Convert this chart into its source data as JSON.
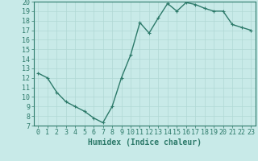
{
  "title": "",
  "xlabel": "Humidex (Indice chaleur)",
  "x": [
    0,
    1,
    2,
    3,
    4,
    5,
    6,
    7,
    8,
    9,
    10,
    11,
    12,
    13,
    14,
    15,
    16,
    17,
    18,
    19,
    20,
    21,
    22,
    23
  ],
  "y": [
    12.5,
    12.0,
    10.5,
    9.5,
    9.0,
    8.5,
    7.8,
    7.3,
    9.0,
    12.0,
    14.4,
    17.8,
    16.7,
    18.3,
    19.8,
    19.0,
    19.9,
    19.7,
    19.3,
    19.0,
    19.0,
    17.6,
    17.3,
    17.0
  ],
  "line_color": "#2d7a6a",
  "marker": "+",
  "bg_color": "#c8eae8",
  "grid_color": "#b0d8d4",
  "ylim": [
    7,
    20
  ],
  "yticks": [
    7,
    8,
    9,
    10,
    11,
    12,
    13,
    14,
    15,
    16,
    17,
    18,
    19,
    20
  ],
  "xticks": [
    0,
    1,
    2,
    3,
    4,
    5,
    6,
    7,
    8,
    9,
    10,
    11,
    12,
    13,
    14,
    15,
    16,
    17,
    18,
    19,
    20,
    21,
    22,
    23
  ],
  "tick_color": "#2d7a6a",
  "label_color": "#2d7a6a",
  "xlabel_fontsize": 7,
  "tick_fontsize": 6,
  "linewidth": 1.0,
  "markersize": 3.5,
  "markeredgewidth": 0.8
}
